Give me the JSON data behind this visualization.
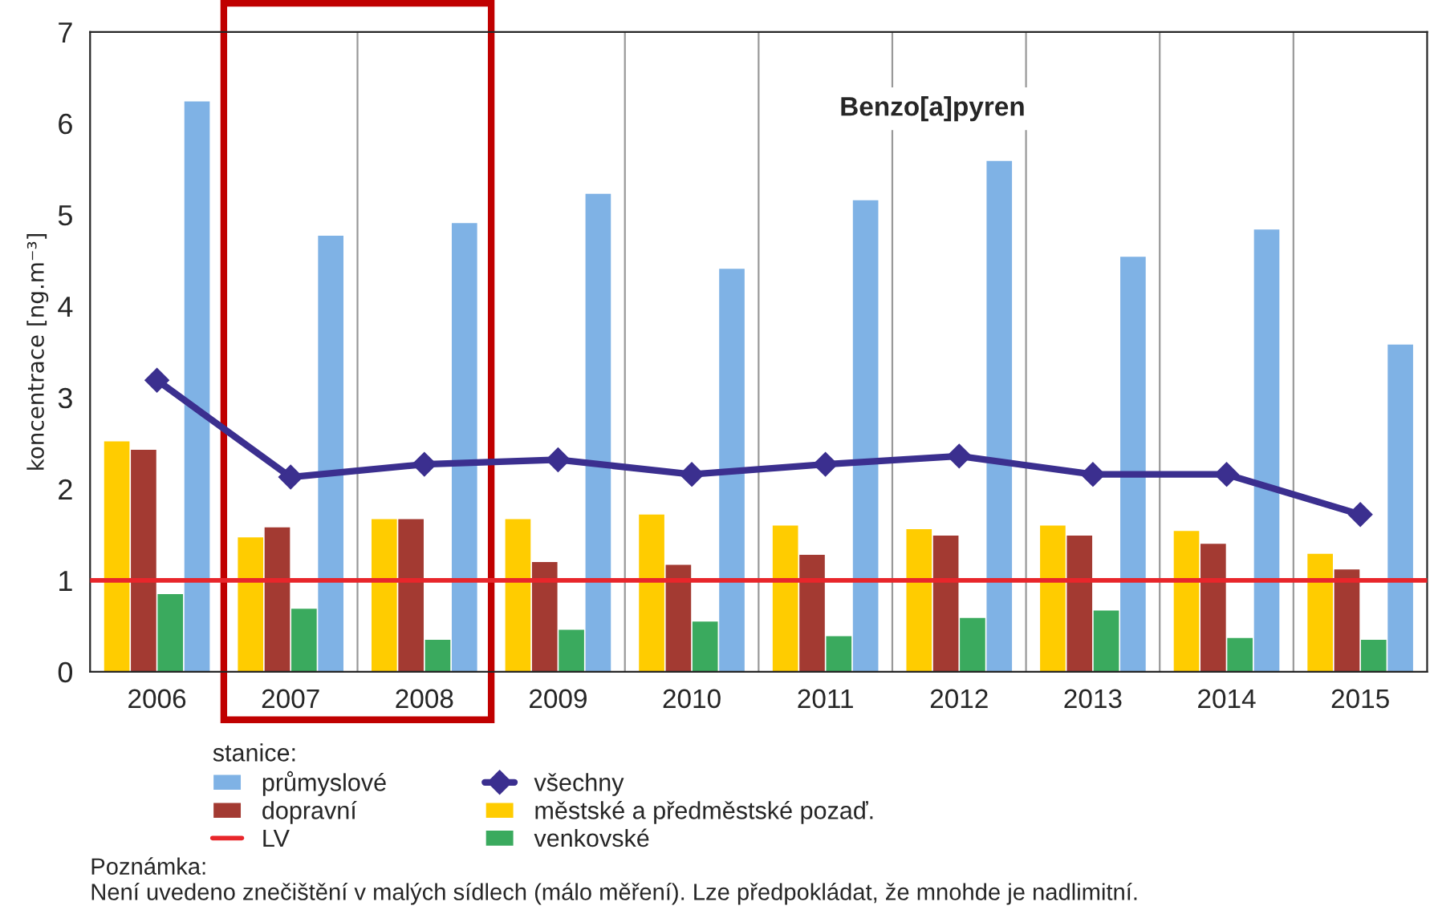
{
  "chart_data": {
    "type": "bar",
    "title": "Benzo[a]pyren",
    "ylabel": "koncentrace [ng.m⁻³]",
    "legend_title": "stanice:",
    "categories": [
      "2006",
      "2007",
      "2008",
      "2009",
      "2010",
      "2011",
      "2012",
      "2013",
      "2014",
      "2015"
    ],
    "series": [
      {
        "name": "městské a předměstské pozaď.",
        "color": "#ffcc00",
        "values": [
          2.52,
          1.47,
          1.67,
          1.67,
          1.72,
          1.6,
          1.56,
          1.6,
          1.54,
          1.29
        ]
      },
      {
        "name": "dopravní",
        "color": "#a33a32",
        "values": [
          2.43,
          1.58,
          1.67,
          1.2,
          1.17,
          1.28,
          1.49,
          1.49,
          1.4,
          1.12
        ]
      },
      {
        "name": "venkovské",
        "color": "#3aaa5e",
        "values": [
          0.85,
          0.69,
          0.35,
          0.46,
          0.55,
          0.39,
          0.59,
          0.67,
          0.37,
          0.35
        ]
      },
      {
        "name": "průmyslové",
        "color": "#7fb2e5",
        "values": [
          6.24,
          4.77,
          4.91,
          5.23,
          4.41,
          5.16,
          5.59,
          4.54,
          4.84,
          3.58
        ]
      },
      {
        "name": "všechny",
        "type": "line",
        "color": "#3b2f8f",
        "marker": "diamond",
        "values": [
          3.19,
          2.13,
          2.27,
          2.32,
          2.16,
          2.27,
          2.36,
          2.16,
          2.16,
          1.72
        ]
      }
    ],
    "ref_lines": [
      {
        "axis": "y",
        "value": 1,
        "label": "LV",
        "color": "#e8262b"
      }
    ],
    "ylim": [
      0,
      7
    ],
    "yticks": [
      0,
      1,
      2,
      3,
      4,
      5,
      6,
      7
    ],
    "grid": "x",
    "legend": "bottom",
    "annotations": [
      "Poznámka:\nNení uvedeno znečištění v malých sídlech (málo měření). Lze předpokládat, že mnohde je nadlimitní."
    ]
  }
}
